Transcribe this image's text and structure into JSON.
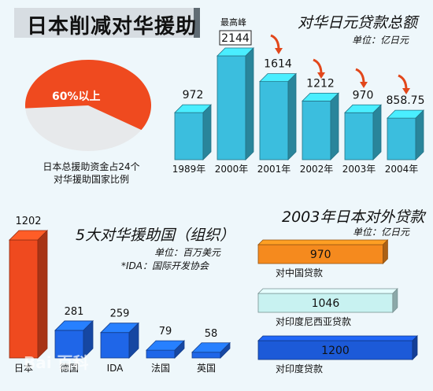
{
  "title": "日本削减对华援助",
  "pie": {
    "label": "60%以上",
    "caption_line1": "日本总援助资金占24个",
    "caption_line2": "对华援助国家比例",
    "share": 0.6
  },
  "chart_data": [
    {
      "type": "bar",
      "title": "对华日元贷款总额",
      "unit": "单位：亿日元",
      "categories": [
        "1989年",
        "2000年",
        "2001年",
        "2002年",
        "2003年",
        "2004年"
      ],
      "values": [
        972,
        2144,
        1614,
        1212,
        970,
        858.75
      ],
      "value_labels": [
        "972",
        "2144",
        "1614",
        "1212",
        "970",
        "858.75"
      ],
      "annotation": "最高峰",
      "annotation_category": "2000年",
      "color": "#3bbede",
      "ylim": [
        0,
        2144
      ]
    },
    {
      "type": "bar",
      "title": "5大对华援助国（组织）",
      "unit": "单位：百万美元",
      "note": "*IDA：国际开发协会",
      "categories": [
        "日本",
        "德国",
        "IDA",
        "法国",
        "英国"
      ],
      "values": [
        1202,
        281,
        259,
        79,
        58
      ],
      "value_labels": [
        "1202",
        "281",
        "259",
        "79",
        "58"
      ],
      "colors": [
        "#ef4a1f",
        "#1f66e8",
        "#1f66e8",
        "#1f66e8",
        "#1f66e8"
      ],
      "ylim": [
        0,
        1202
      ]
    },
    {
      "type": "bar",
      "orientation": "horizontal",
      "title": "2003年日本对外贷款",
      "unit": "单位：亿日元",
      "categories": [
        "对中国贷款",
        "对印度尼西亚贷款",
        "对印度贷款"
      ],
      "values": [
        970,
        1046,
        1200
      ],
      "value_labels": [
        "970",
        "1046",
        "1200"
      ],
      "colors": [
        "#f58a1e",
        "#c8f2f1",
        "#1c5ad8"
      ],
      "xlim": [
        0,
        1200
      ]
    }
  ],
  "watermark": "Bai 百科"
}
